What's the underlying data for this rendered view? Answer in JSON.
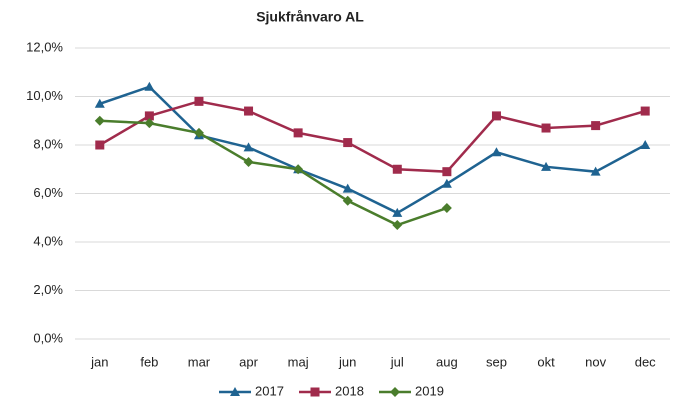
{
  "chart_data": {
    "type": "line",
    "title": "Sjukfrånvaro AL",
    "categories": [
      "jan",
      "feb",
      "mar",
      "apr",
      "maj",
      "jun",
      "jul",
      "aug",
      "sep",
      "okt",
      "nov",
      "dec"
    ],
    "series": [
      {
        "name": "2017",
        "color": "#1f6391",
        "marker": "triangle",
        "values": [
          9.7,
          10.4,
          8.4,
          7.9,
          7.0,
          6.2,
          5.2,
          6.4,
          7.7,
          7.1,
          6.9,
          8.0
        ]
      },
      {
        "name": "2018",
        "color": "#a02b4c",
        "marker": "square",
        "values": [
          8.0,
          9.2,
          9.8,
          9.4,
          8.5,
          8.1,
          7.0,
          6.9,
          9.2,
          8.7,
          8.8,
          9.4
        ]
      },
      {
        "name": "2019",
        "color": "#4a7d2c",
        "marker": "diamond",
        "values": [
          9.0,
          8.9,
          8.5,
          7.3,
          7.0,
          5.7,
          4.7,
          5.4,
          null,
          null,
          null,
          null
        ]
      }
    ],
    "ylim": [
      0,
      12
    ],
    "yticks": [
      {
        "value": 0,
        "label": "0,0%"
      },
      {
        "value": 2,
        "label": "2,0%"
      },
      {
        "value": 4,
        "label": "4,0%"
      },
      {
        "value": 6,
        "label": "6,0%"
      },
      {
        "value": 8,
        "label": "8,0%"
      },
      {
        "value": 10,
        "label": "10,0%"
      },
      {
        "value": 12,
        "label": "12,0%"
      }
    ],
    "grid": true,
    "legend": "bottom"
  }
}
